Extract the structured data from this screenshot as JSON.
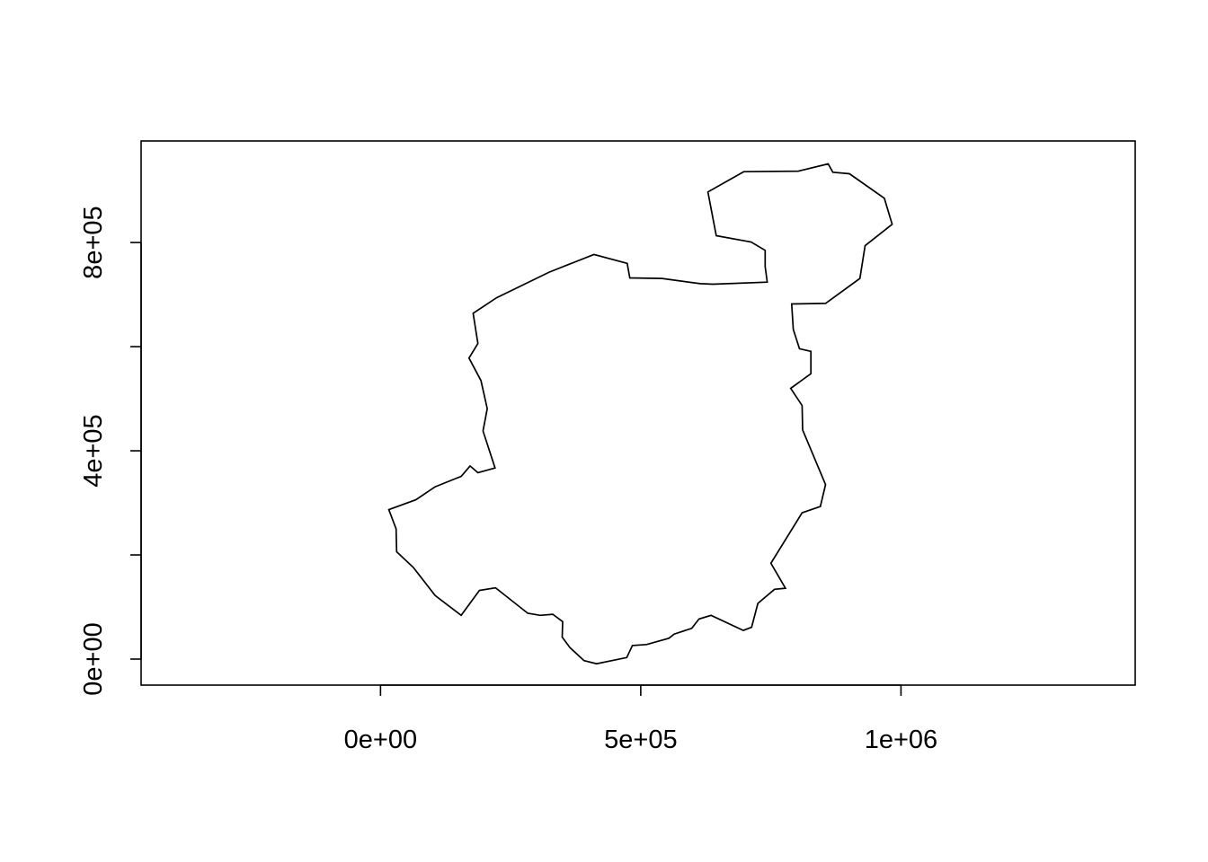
{
  "chart_data": {
    "type": "line",
    "title": "",
    "xlabel": "",
    "ylabel": "",
    "xlim": [
      -460000,
      1450000
    ],
    "ylim": [
      -50000,
      995000
    ],
    "xticks": [
      {
        "value": 0,
        "label": "0e+00"
      },
      {
        "value": 500000,
        "label": "5e+05"
      },
      {
        "value": 1000000,
        "label": "1e+06"
      }
    ],
    "yticks": [
      {
        "value": 0,
        "label": "0e+00"
      },
      {
        "value": 200000,
        "label": ""
      },
      {
        "value": 400000,
        "label": "4e+05"
      },
      {
        "value": 600000,
        "label": ""
      },
      {
        "value": 800000,
        "label": "8e+05"
      }
    ],
    "grid": false,
    "series": [
      {
        "color": "#000000",
        "points": [
          [
            16000,
            287000
          ],
          [
            68000,
            306000
          ],
          [
            105000,
            331000
          ],
          [
            155000,
            351000
          ],
          [
            172000,
            371000
          ],
          [
            187000,
            358000
          ],
          [
            220000,
            367000
          ],
          [
            197000,
            438000
          ],
          [
            205000,
            481000
          ],
          [
            193000,
            535000
          ],
          [
            170000,
            578000
          ],
          [
            187000,
            606000
          ],
          [
            178000,
            664000
          ],
          [
            223000,
            694000
          ],
          [
            324000,
            743000
          ],
          [
            410000,
            777000
          ],
          [
            474000,
            760000
          ],
          [
            479000,
            732000
          ],
          [
            541000,
            731000
          ],
          [
            614000,
            721000
          ],
          [
            639000,
            720000
          ],
          [
            743000,
            724000
          ],
          [
            739000,
            754000
          ],
          [
            739000,
            785000
          ],
          [
            712000,
            801000
          ],
          [
            645000,
            813000
          ],
          [
            629000,
            897000
          ],
          [
            698000,
            936000
          ],
          [
            803000,
            937000
          ],
          [
            860000,
            951000
          ],
          [
            869000,
            935000
          ],
          [
            901000,
            932000
          ],
          [
            968000,
            885000
          ],
          [
            983000,
            835000
          ],
          [
            931000,
            794000
          ],
          [
            921000,
            731000
          ],
          [
            855000,
            683000
          ],
          [
            790000,
            682000
          ],
          [
            793000,
            633000
          ],
          [
            805000,
            596000
          ],
          [
            827000,
            591000
          ],
          [
            827000,
            548000
          ],
          [
            788000,
            520000
          ],
          [
            810000,
            487000
          ],
          [
            811000,
            440000
          ],
          [
            855000,
            335000
          ],
          [
            845000,
            293000
          ],
          [
            810000,
            281000
          ],
          [
            750000,
            184000
          ],
          [
            778000,
            136000
          ],
          [
            757000,
            134000
          ],
          [
            725000,
            107000
          ],
          [
            713000,
            61000
          ],
          [
            697000,
            55000
          ],
          [
            635000,
            84000
          ],
          [
            612000,
            77000
          ],
          [
            598000,
            59000
          ],
          [
            564000,
            48000
          ],
          [
            554000,
            40000
          ],
          [
            511000,
            28000
          ],
          [
            484000,
            26000
          ],
          [
            473000,
            3000
          ],
          [
            415000,
            -9000
          ],
          [
            391000,
            -3000
          ],
          [
            364000,
            22000
          ],
          [
            349000,
            42000
          ],
          [
            350000,
            72000
          ],
          [
            331000,
            86000
          ],
          [
            307000,
            84000
          ],
          [
            283000,
            88000
          ],
          [
            221000,
            137000
          ],
          [
            190000,
            132000
          ],
          [
            155000,
            84000
          ],
          [
            105000,
            122000
          ],
          [
            63000,
            176000
          ],
          [
            31000,
            206000
          ],
          [
            30000,
            250000
          ]
        ]
      }
    ]
  }
}
